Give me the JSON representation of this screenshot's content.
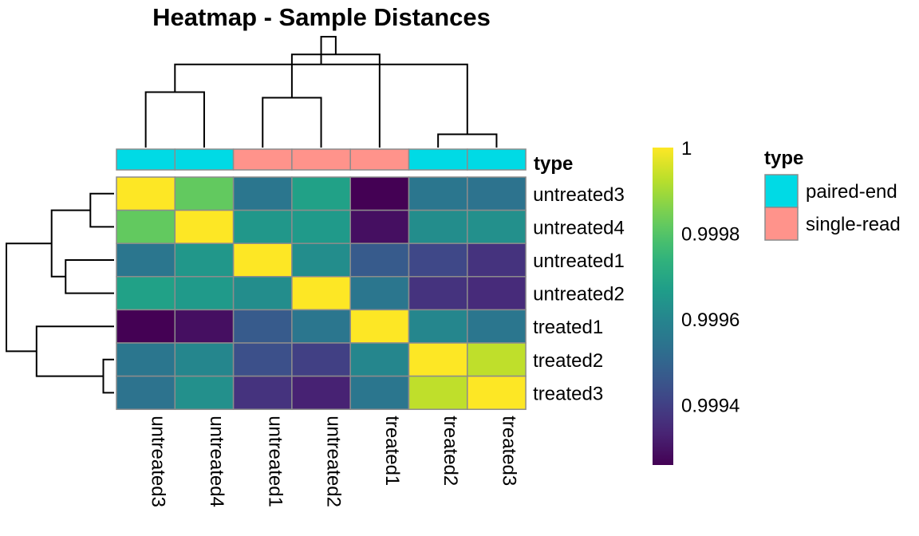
{
  "chart_data": {
    "type": "heatmap",
    "title": "Heatmap - Sample Distances",
    "rows": [
      "untreated3",
      "untreated4",
      "untreated1",
      "untreated2",
      "treated1",
      "treated2",
      "treated3"
    ],
    "columns": [
      "untreated3",
      "untreated4",
      "untreated1",
      "untreated2",
      "treated1",
      "treated2",
      "treated3"
    ],
    "values": [
      [
        1.0,
        0.99982,
        0.99955,
        0.99968,
        0.99926,
        0.99955,
        0.99954
      ],
      [
        0.99982,
        1.0,
        0.99965,
        0.99966,
        0.99929,
        0.99962,
        0.99963
      ],
      [
        0.99955,
        0.99965,
        1.0,
        0.99962,
        0.99947,
        0.99942,
        0.99937
      ],
      [
        0.99968,
        0.99966,
        0.99962,
        1.0,
        0.99955,
        0.99937,
        0.99935
      ],
      [
        0.99926,
        0.99929,
        0.99947,
        0.99955,
        1.0,
        0.9996,
        0.99955
      ],
      [
        0.99955,
        0.9996,
        0.99944,
        0.9994,
        0.9996,
        1.0,
        0.99993
      ],
      [
        0.99954,
        0.99963,
        0.99937,
        0.99933,
        0.99955,
        0.99993,
        1.0
      ]
    ],
    "color_scale": {
      "palette": "viridis",
      "range": [
        0.99926,
        1.0
      ],
      "ticks": [
        1,
        0.9998,
        0.9996,
        0.9994
      ],
      "tick_labels": [
        "1",
        "0.9998",
        "0.9996",
        "0.9994"
      ]
    },
    "column_annotation": {
      "name": "type",
      "values": [
        "paired-end",
        "paired-end",
        "single-read",
        "single-read",
        "single-read",
        "paired-end",
        "paired-end"
      ],
      "legend_title": "type",
      "levels": [
        {
          "name": "paired-end",
          "color": "#00dae5"
        },
        {
          "name": "single-read",
          "color": "#ff938b"
        }
      ]
    },
    "column_dendrogram": {
      "leaves": [
        0,
        1,
        2,
        3,
        4,
        5,
        6
      ],
      "merges": [
        [
          0,
          1,
          0.5
        ],
        [
          2,
          3,
          0.45
        ],
        [
          5,
          6,
          0.12
        ],
        [
          -2,
          4,
          0.84
        ],
        [
          -1,
          -3,
          0.75
        ],
        [
          -5,
          -4,
          1.0
        ]
      ]
    },
    "row_dendrogram": {
      "leaves": [
        0,
        1,
        2,
        3,
        4,
        5,
        6
      ],
      "merges": [
        [
          0,
          1,
          0.22
        ],
        [
          2,
          3,
          0.45
        ],
        [
          5,
          6,
          0.1
        ],
        [
          -1,
          -2,
          0.58
        ],
        [
          -3,
          4,
          0.72
        ],
        [
          -4,
          -5,
          1.0
        ]
      ]
    }
  }
}
